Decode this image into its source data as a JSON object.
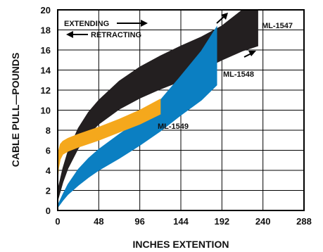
{
  "chart_data": {
    "type": "area",
    "xlabel": "INCHES EXTENTION",
    "ylabel": "CABLE PULL—POUNDS",
    "xlim": [
      0,
      288
    ],
    "ylim": [
      0,
      20
    ],
    "x_ticks": [
      0,
      48,
      96,
      144,
      192,
      240,
      288
    ],
    "y_ticks": [
      0,
      2,
      4,
      6,
      8,
      10,
      12,
      14,
      16,
      18,
      20
    ],
    "grid": true,
    "legend": {
      "extending": "EXTENDING",
      "retracting": "RETRACTING",
      "placement": "top-left"
    },
    "series": [
      {
        "name": "ML-1547",
        "color": "#231f20",
        "x": [
          0,
          6,
          12,
          24,
          36,
          48,
          72,
          96,
          120,
          144,
          168,
          192,
          216,
          234
        ],
        "upper": [
          2.0,
          4.2,
          5.9,
          8.2,
          9.8,
          11.0,
          12.9,
          14.3,
          15.4,
          16.4,
          17.3,
          18.4,
          20.0,
          20.0
        ],
        "lower": [
          1.0,
          2.8,
          4.2,
          6.2,
          7.6,
          8.6,
          10.1,
          11.2,
          12.1,
          12.9,
          14.0,
          15.0,
          15.9,
          16.4
        ]
      },
      {
        "name": "ML-1548",
        "color": "#0b7fc2",
        "x": [
          0,
          6,
          12,
          24,
          36,
          48,
          72,
          96,
          120,
          144,
          168,
          186
        ],
        "upper": [
          0.5,
          1.6,
          2.6,
          4.1,
          5.2,
          6.1,
          7.6,
          9.0,
          11.0,
          13.4,
          15.9,
          18.3
        ],
        "lower": [
          0.3,
          1.0,
          1.6,
          2.5,
          3.3,
          4.0,
          5.2,
          6.5,
          7.9,
          9.5,
          11.0,
          12.5
        ]
      },
      {
        "name": "ML-1549",
        "color": "#f5a81c",
        "x": [
          0,
          1,
          3,
          6,
          12,
          24,
          48,
          72,
          96,
          120
        ],
        "upper": [
          4.3,
          5.9,
          6.6,
          6.9,
          7.2,
          7.6,
          8.3,
          9.1,
          10.0,
          11.1
        ],
        "lower": [
          3.0,
          4.2,
          5.1,
          5.6,
          5.9,
          6.3,
          7.0,
          7.8,
          8.6,
          9.6
        ]
      }
    ]
  }
}
